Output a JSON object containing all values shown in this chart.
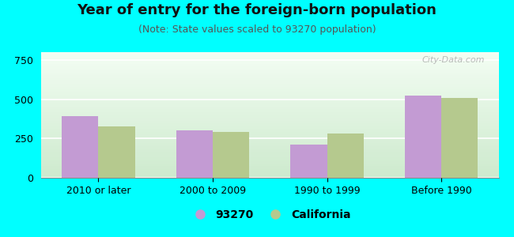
{
  "title": "Year of entry for the foreign-born population",
  "subtitle": "(Note: State values scaled to 93270 population)",
  "categories": [
    "2010 or later",
    "2000 to 2009",
    "1990 to 1999",
    "Before 1990"
  ],
  "series": {
    "93270": [
      390,
      300,
      210,
      522
    ],
    "California": [
      325,
      290,
      280,
      510
    ]
  },
  "bar_colors": {
    "93270": "#c39bd3",
    "California": "#b5c98e"
  },
  "ylim": [
    0,
    800
  ],
  "yticks": [
    0,
    250,
    500,
    750
  ],
  "background_color": "#00ffff",
  "plot_bg_left": "#d8edd8",
  "plot_bg_right": "#f8fff8",
  "bar_width": 0.32,
  "legend_labels": [
    "93270",
    "California"
  ],
  "watermark": "City-Data.com",
  "title_fontsize": 13,
  "subtitle_fontsize": 9,
  "tick_fontsize": 9,
  "legend_fontsize": 10
}
